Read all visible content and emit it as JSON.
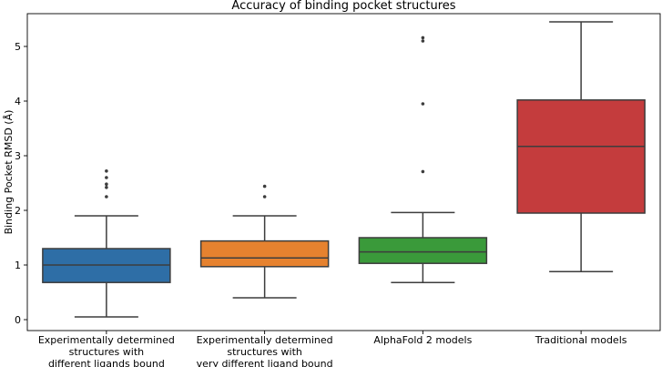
{
  "chart_data": {
    "type": "box",
    "title": "Accuracy of binding pocket structures",
    "xlabel": "",
    "ylabel": "Binding Pocket RMSD (Å)",
    "ylim": [
      -0.2,
      5.6
    ],
    "yticks": [
      0,
      1,
      2,
      3,
      4,
      5
    ],
    "grid": false,
    "categories": [
      [
        "Experimentally determined",
        "structures with",
        "different ligands bound"
      ],
      [
        "Experimentally determined",
        "structures with",
        "very different ligand bound"
      ],
      [
        "AlphaFold 2 models"
      ],
      [
        "Traditional models"
      ]
    ],
    "boxes": [
      {
        "color": "#2e6ea6",
        "whisker_low": 0.05,
        "q1": 0.68,
        "median": 1.0,
        "q3": 1.3,
        "whisker_high": 1.9,
        "outliers": [
          2.25,
          2.42,
          2.48,
          2.6,
          2.72
        ]
      },
      {
        "color": "#e6822f",
        "whisker_low": 0.4,
        "q1": 0.97,
        "median": 1.13,
        "q3": 1.44,
        "whisker_high": 1.9,
        "outliers": [
          2.25,
          2.44
        ]
      },
      {
        "color": "#3a9a3a",
        "whisker_low": 0.68,
        "q1": 1.03,
        "median": 1.24,
        "q3": 1.5,
        "whisker_high": 1.96,
        "outliers": [
          2.71,
          3.95,
          5.1,
          5.16
        ]
      },
      {
        "color": "#c43c3d",
        "whisker_low": 0.88,
        "q1": 1.95,
        "median": 3.17,
        "q3": 4.02,
        "whisker_high": 5.45,
        "outliers": []
      }
    ]
  }
}
